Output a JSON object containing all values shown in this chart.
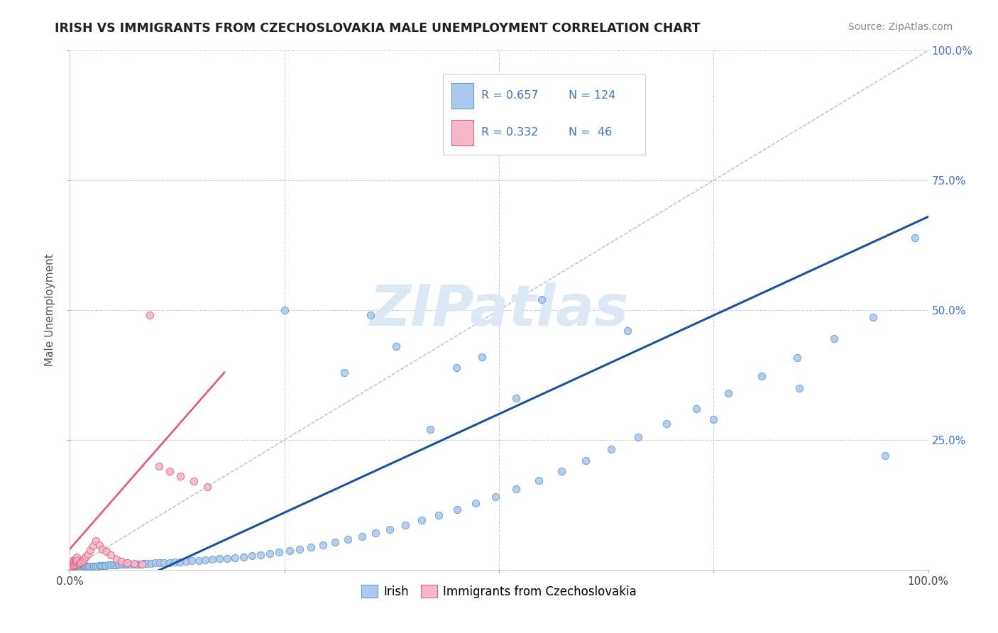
{
  "title": "IRISH VS IMMIGRANTS FROM CZECHOSLOVAKIA MALE UNEMPLOYMENT CORRELATION CHART",
  "source": "Source: ZipAtlas.com",
  "ylabel": "Male Unemployment",
  "xlim": [
    0,
    1
  ],
  "ylim": [
    0,
    1
  ],
  "irish_color": "#adc9ed",
  "irish_edge_color": "#6699cc",
  "czech_color": "#f4b8cb",
  "czech_edge_color": "#e06080",
  "blue_line_color": "#1a52a0",
  "pink_line_color": "#e06080",
  "ref_line_color": "#bbbbbb",
  "grid_color": "#c8d4e8",
  "watermark_color": "#dde8f5",
  "watermark": "ZIPatlas",
  "R_irish": 0.657,
  "N_irish": 124,
  "R_czech": 0.332,
  "N_czech": 46,
  "legend_label_irish": "Irish",
  "legend_label_czech": "Immigrants from Czechoslovakia",
  "legend_text_color": "#4472c4",
  "legend_r_label_color": "#333333",
  "background_color": "#ffffff",
  "irish_x": [
    0.001,
    0.001,
    0.001,
    0.002,
    0.002,
    0.002,
    0.002,
    0.003,
    0.003,
    0.003,
    0.003,
    0.003,
    0.004,
    0.004,
    0.004,
    0.005,
    0.005,
    0.005,
    0.006,
    0.006,
    0.007,
    0.007,
    0.008,
    0.008,
    0.009,
    0.009,
    0.01,
    0.011,
    0.012,
    0.013,
    0.014,
    0.015,
    0.016,
    0.017,
    0.018,
    0.019,
    0.02,
    0.022,
    0.024,
    0.026,
    0.028,
    0.03,
    0.032,
    0.034,
    0.036,
    0.038,
    0.04,
    0.042,
    0.045,
    0.048,
    0.051,
    0.054,
    0.057,
    0.06,
    0.063,
    0.066,
    0.07,
    0.074,
    0.078,
    0.082,
    0.086,
    0.09,
    0.095,
    0.1,
    0.105,
    0.11,
    0.116,
    0.122,
    0.128,
    0.135,
    0.142,
    0.15,
    0.158,
    0.166,
    0.174,
    0.183,
    0.192,
    0.202,
    0.212,
    0.222,
    0.233,
    0.244,
    0.256,
    0.268,
    0.281,
    0.295,
    0.309,
    0.324,
    0.34,
    0.356,
    0.373,
    0.391,
    0.41,
    0.43,
    0.451,
    0.473,
    0.496,
    0.52,
    0.546,
    0.573,
    0.601,
    0.631,
    0.662,
    0.695,
    0.73,
    0.767,
    0.806,
    0.847,
    0.89,
    0.936,
    0.985,
    0.25,
    0.35,
    0.45,
    0.55,
    0.65,
    0.75,
    0.85,
    0.95,
    0.48,
    0.38,
    0.32,
    0.42,
    0.52
  ],
  "irish_y": [
    0.003,
    0.004,
    0.005,
    0.003,
    0.004,
    0.005,
    0.006,
    0.003,
    0.004,
    0.005,
    0.006,
    0.007,
    0.004,
    0.005,
    0.006,
    0.004,
    0.005,
    0.006,
    0.004,
    0.005,
    0.005,
    0.006,
    0.005,
    0.006,
    0.005,
    0.006,
    0.005,
    0.006,
    0.005,
    0.006,
    0.005,
    0.006,
    0.005,
    0.006,
    0.006,
    0.007,
    0.006,
    0.006,
    0.007,
    0.007,
    0.007,
    0.007,
    0.007,
    0.008,
    0.008,
    0.008,
    0.008,
    0.008,
    0.009,
    0.009,
    0.009,
    0.009,
    0.01,
    0.01,
    0.01,
    0.01,
    0.01,
    0.011,
    0.011,
    0.011,
    0.012,
    0.012,
    0.012,
    0.013,
    0.013,
    0.014,
    0.014,
    0.015,
    0.015,
    0.016,
    0.017,
    0.018,
    0.019,
    0.02,
    0.021,
    0.022,
    0.023,
    0.025,
    0.027,
    0.029,
    0.031,
    0.034,
    0.037,
    0.04,
    0.044,
    0.048,
    0.053,
    0.058,
    0.064,
    0.071,
    0.078,
    0.086,
    0.095,
    0.105,
    0.116,
    0.128,
    0.141,
    0.156,
    0.172,
    0.19,
    0.21,
    0.232,
    0.256,
    0.282,
    0.31,
    0.34,
    0.373,
    0.408,
    0.446,
    0.486,
    0.64,
    0.5,
    0.49,
    0.39,
    0.52,
    0.46,
    0.29,
    0.35,
    0.22,
    0.41,
    0.43,
    0.38,
    0.27,
    0.33
  ],
  "czech_x": [
    0.001,
    0.001,
    0.001,
    0.002,
    0.002,
    0.002,
    0.003,
    0.003,
    0.003,
    0.004,
    0.004,
    0.005,
    0.005,
    0.006,
    0.006,
    0.007,
    0.007,
    0.008,
    0.008,
    0.009,
    0.01,
    0.011,
    0.012,
    0.013,
    0.015,
    0.017,
    0.019,
    0.021,
    0.024,
    0.027,
    0.03,
    0.034,
    0.038,
    0.043,
    0.048,
    0.054,
    0.06,
    0.067,
    0.075,
    0.084,
    0.093,
    0.104,
    0.116,
    0.129,
    0.144,
    0.16
  ],
  "czech_y": [
    0.005,
    0.008,
    0.012,
    0.006,
    0.01,
    0.015,
    0.007,
    0.012,
    0.018,
    0.008,
    0.014,
    0.009,
    0.016,
    0.011,
    0.018,
    0.013,
    0.021,
    0.015,
    0.024,
    0.017,
    0.01,
    0.012,
    0.013,
    0.015,
    0.018,
    0.022,
    0.026,
    0.03,
    0.038,
    0.046,
    0.056,
    0.048,
    0.04,
    0.035,
    0.028,
    0.02,
    0.016,
    0.014,
    0.012,
    0.011,
    0.49,
    0.2,
    0.19,
    0.18,
    0.17,
    0.16
  ],
  "blue_line_x": [
    0.0,
    1.0
  ],
  "blue_line_y": [
    -0.08,
    0.68
  ],
  "pink_line_x": [
    0.0,
    0.18
  ],
  "pink_line_y": [
    0.04,
    0.38
  ]
}
